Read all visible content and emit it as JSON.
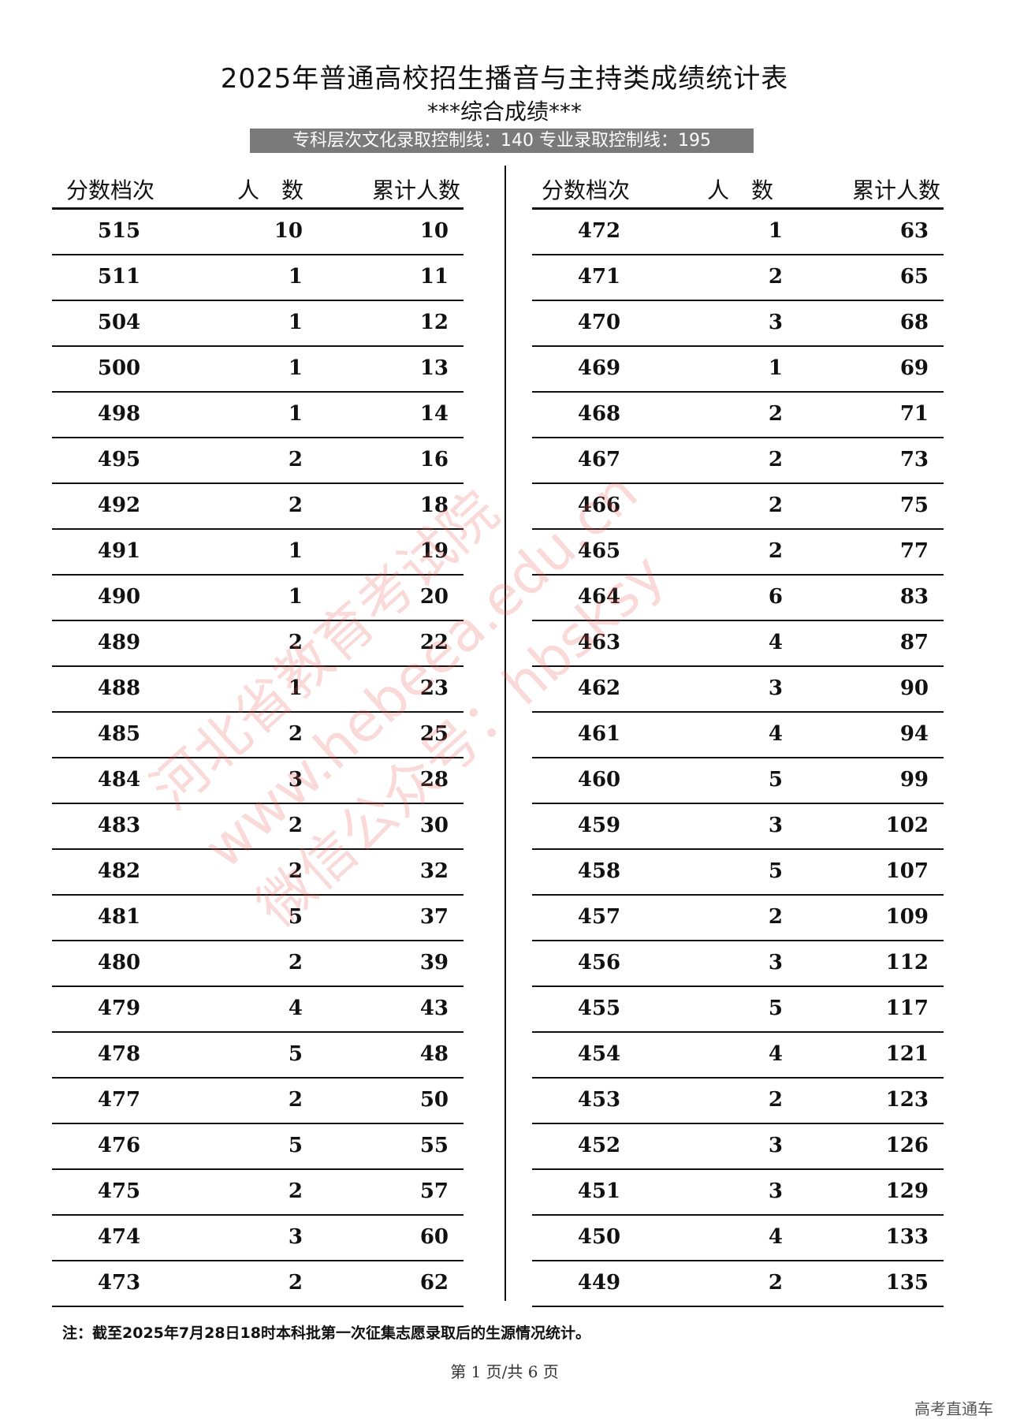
{
  "title": "2025年普通高校招生播音与主持类成绩统计表",
  "subtitle": "***综合成绩***",
  "banner": "专科层次文化录取控制线：140  专业录取控制线：195",
  "headers": {
    "score": "分数档次",
    "count": "人　数",
    "cumulative": "累计人数"
  },
  "left_rows": [
    [
      "515",
      "10",
      "10"
    ],
    [
      "511",
      "1",
      "11"
    ],
    [
      "504",
      "1",
      "12"
    ],
    [
      "500",
      "1",
      "13"
    ],
    [
      "498",
      "1",
      "14"
    ],
    [
      "495",
      "2",
      "16"
    ],
    [
      "492",
      "2",
      "18"
    ],
    [
      "491",
      "1",
      "19"
    ],
    [
      "490",
      "1",
      "20"
    ],
    [
      "489",
      "2",
      "22"
    ],
    [
      "488",
      "1",
      "23"
    ],
    [
      "485",
      "2",
      "25"
    ],
    [
      "484",
      "3",
      "28"
    ],
    [
      "483",
      "2",
      "30"
    ],
    [
      "482",
      "2",
      "32"
    ],
    [
      "481",
      "5",
      "37"
    ],
    [
      "480",
      "2",
      "39"
    ],
    [
      "479",
      "4",
      "43"
    ],
    [
      "478",
      "5",
      "48"
    ],
    [
      "477",
      "2",
      "50"
    ],
    [
      "476",
      "5",
      "55"
    ],
    [
      "475",
      "2",
      "57"
    ],
    [
      "474",
      "3",
      "60"
    ],
    [
      "473",
      "2",
      "62"
    ]
  ],
  "right_rows": [
    [
      "472",
      "1",
      "63"
    ],
    [
      "471",
      "2",
      "65"
    ],
    [
      "470",
      "3",
      "68"
    ],
    [
      "469",
      "1",
      "69"
    ],
    [
      "468",
      "2",
      "71"
    ],
    [
      "467",
      "2",
      "73"
    ],
    [
      "466",
      "2",
      "75"
    ],
    [
      "465",
      "2",
      "77"
    ],
    [
      "464",
      "6",
      "83"
    ],
    [
      "463",
      "4",
      "87"
    ],
    [
      "462",
      "3",
      "90"
    ],
    [
      "461",
      "4",
      "94"
    ],
    [
      "460",
      "5",
      "99"
    ],
    [
      "459",
      "3",
      "102"
    ],
    [
      "458",
      "5",
      "107"
    ],
    [
      "457",
      "2",
      "109"
    ],
    [
      "456",
      "3",
      "112"
    ],
    [
      "455",
      "5",
      "117"
    ],
    [
      "454",
      "4",
      "121"
    ],
    [
      "453",
      "2",
      "123"
    ],
    [
      "452",
      "3",
      "126"
    ],
    [
      "451",
      "3",
      "129"
    ],
    [
      "450",
      "4",
      "133"
    ],
    [
      "449",
      "2",
      "135"
    ]
  ],
  "note": "注：截至2025年7月28日18时本科批第一次征集志愿录取后的生源情况统计。",
  "pager": "第 1 页/共 6 页",
  "watermark_corner": "高考直通车",
  "watermark_stamp": [
    "河北省教育考试院",
    "www.hebeea.edu.cn",
    "微信公众号：hbsksy"
  ],
  "colors": {
    "banner": "#7a7a7a",
    "stamp": "#e65050"
  }
}
